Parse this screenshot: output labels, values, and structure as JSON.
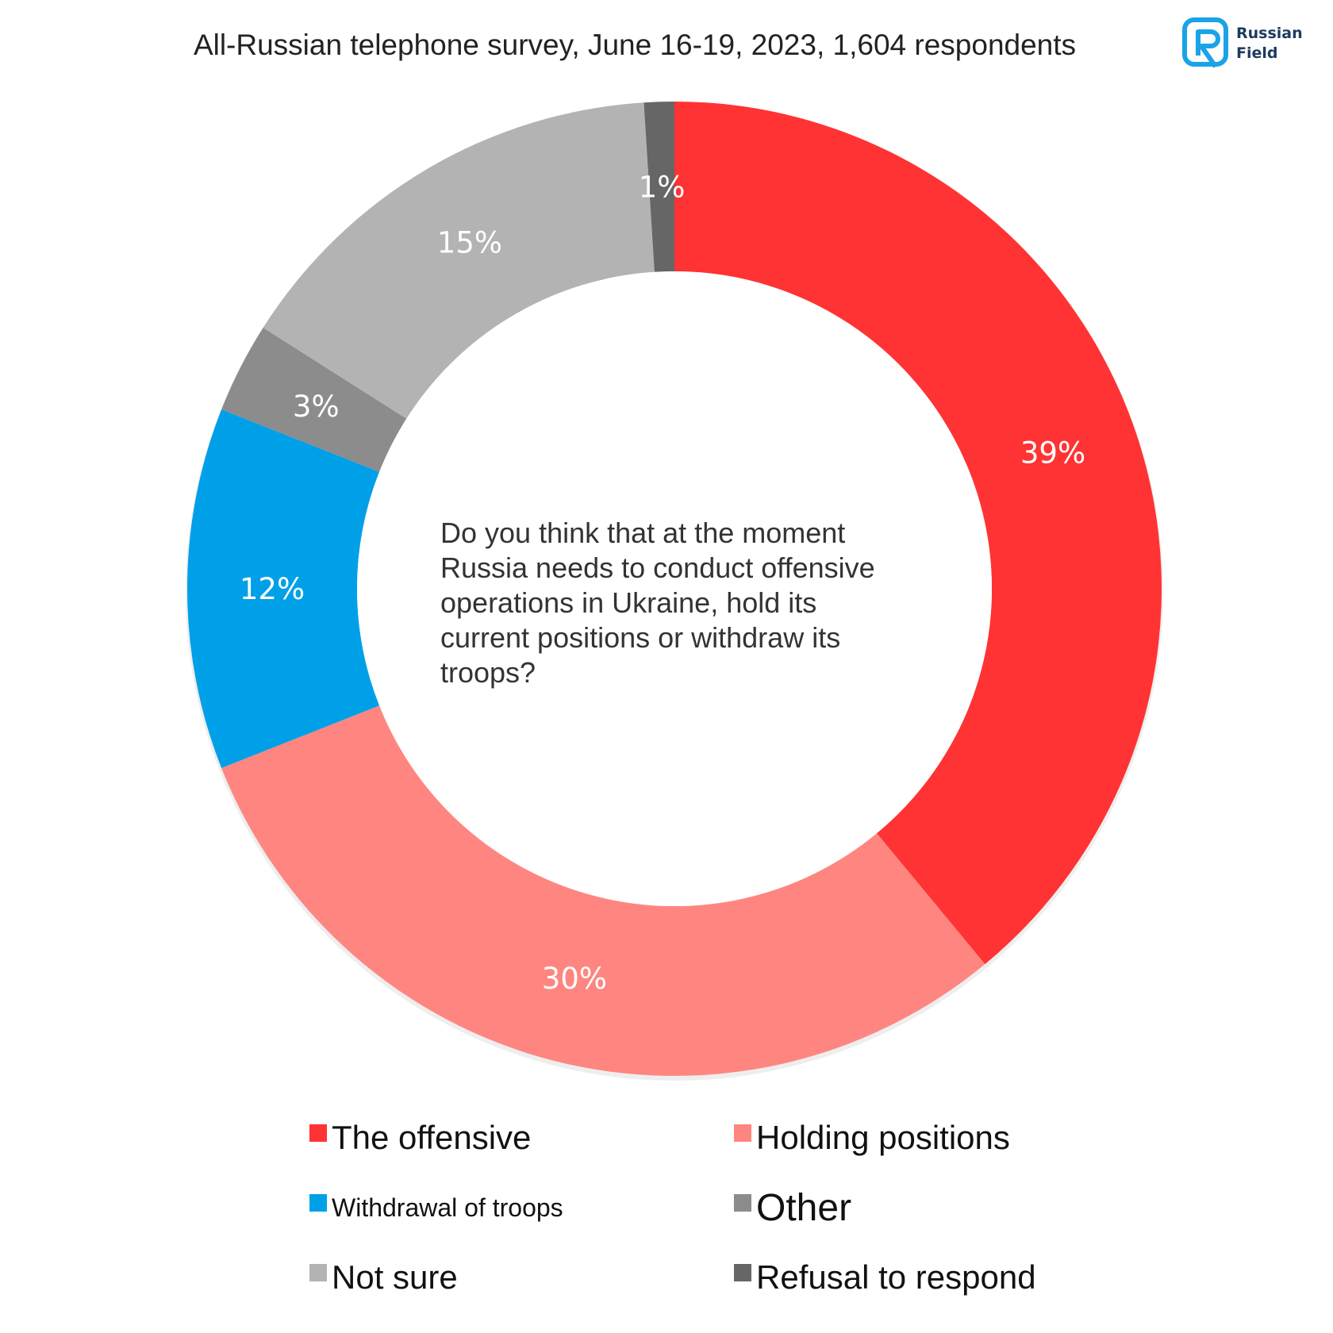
{
  "header": {
    "title": "All-Russian telephone survey, June 16-19, 2023, 1,604 respondents"
  },
  "logo": {
    "line1": "Russian",
    "line2": "Field",
    "color": "#1aa3e8"
  },
  "chart_data": {
    "type": "donut",
    "title": "All-Russian telephone survey, June 16-19, 2023, 1,604 respondents",
    "center_text": "Do you think that at the moment Russia needs to conduct offensive operations in Ukraine, hold its current positions or withdraw its troops?",
    "categories": [
      "The offensive",
      "Holding positions",
      "Withdrawal of troops",
      "Other",
      "Not sure",
      "Refusal to respond"
    ],
    "values": [
      39,
      30,
      12,
      3,
      15,
      1
    ],
    "labels": [
      "39%",
      "30%",
      "12%",
      "3%",
      "15%",
      "1%"
    ],
    "colors": [
      "#ff3333",
      "#ff8680",
      "#00a0e9",
      "#8c8c8c",
      "#b3b3b3",
      "#666666"
    ],
    "legend_position": "bottom"
  }
}
